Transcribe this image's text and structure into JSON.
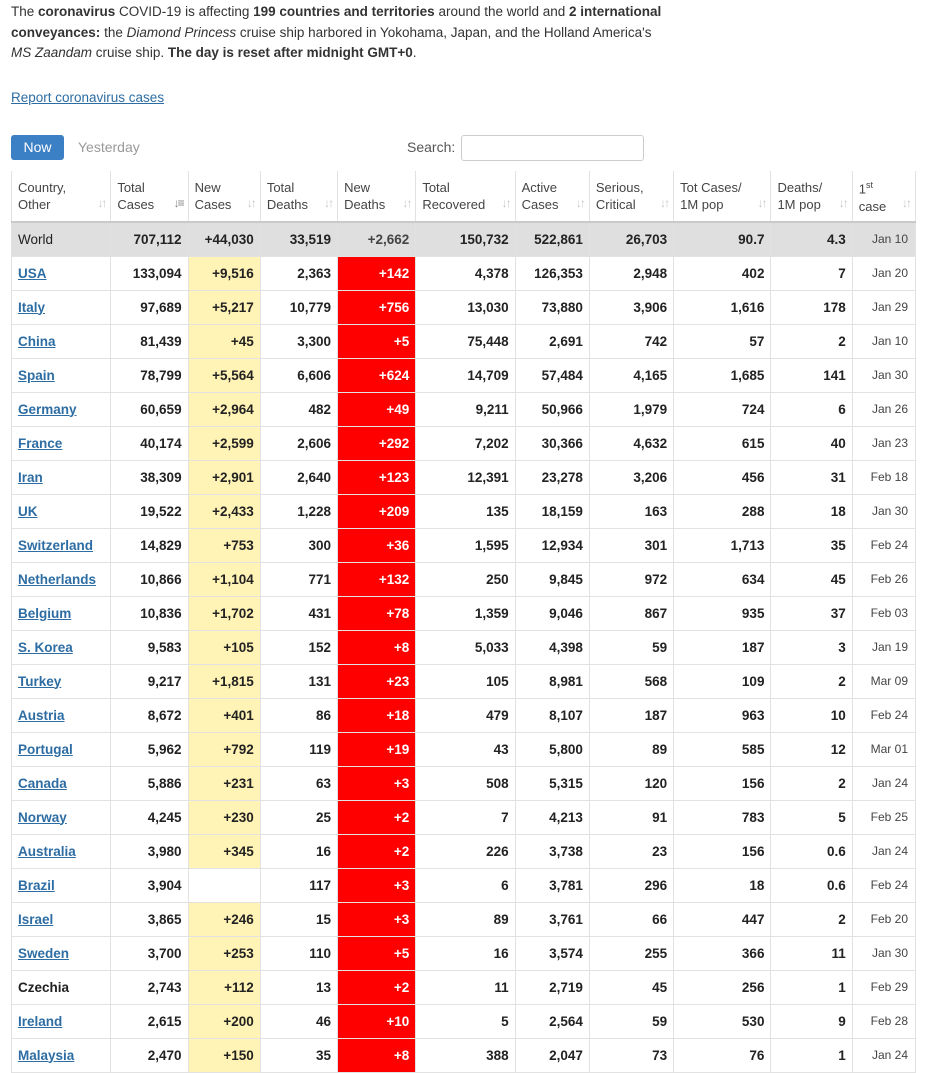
{
  "intro": {
    "t1": "The ",
    "b1": "coronavirus",
    "t2": " COVID-19 is affecting ",
    "b2": "199 countries and territories",
    "t3": " around the world and ",
    "b3": "2 international conveyances:",
    "t4": " the ",
    "i1": "Diamond Princess",
    "t5": " cruise ship harbored in Yokohama, Japan, and the Holland America's ",
    "i2": "MS Zaandam",
    "t6": " cruise ship. ",
    "b4": "The day is reset after midnight GMT+0",
    "t7": "."
  },
  "report_link": "Report coronavirus cases",
  "tabs": {
    "now": "Now",
    "yesterday": "Yesterday"
  },
  "search": {
    "label": "Search:",
    "value": "",
    "placeholder": ""
  },
  "headers": {
    "country": [
      "Country,",
      "Other"
    ],
    "total_cases": [
      "Total",
      "Cases"
    ],
    "new_cases": [
      "New",
      "Cases"
    ],
    "total_deaths": [
      "Total",
      "Deaths"
    ],
    "new_deaths": [
      "New",
      "Deaths"
    ],
    "total_recovered": [
      "Total",
      "Recovered"
    ],
    "active_cases": [
      "Active",
      "Cases"
    ],
    "serious": [
      "Serious,",
      "Critical"
    ],
    "tot_cases_pop": [
      "Tot Cases/",
      "1M pop"
    ],
    "deaths_pop": [
      "Deaths/",
      "1M pop"
    ],
    "first_case": [
      "1",
      "st",
      "case"
    ]
  },
  "icons": {
    "sort_icon": "↓↑",
    "sort_active_icon": "↓≡"
  },
  "colors": {
    "link": "#2d6da3",
    "new_cases_bg": "#fff3b5",
    "new_deaths_bg": "#ff0000",
    "world_bg": "#dfdfdf",
    "now_button": "#3b7fc4"
  },
  "rows": [
    {
      "country": "World",
      "link": false,
      "total": "707,112",
      "new": "+44,030",
      "deaths": "33,519",
      "new_deaths": "+2,662",
      "recovered": "150,732",
      "active": "522,861",
      "serious": "26,703",
      "per_m": "90.7",
      "deaths_m": "4.3",
      "first": "Jan 10"
    },
    {
      "country": "USA",
      "link": true,
      "total": "133,094",
      "new": "+9,516",
      "deaths": "2,363",
      "new_deaths": "+142",
      "recovered": "4,378",
      "active": "126,353",
      "serious": "2,948",
      "per_m": "402",
      "deaths_m": "7",
      "first": "Jan 20"
    },
    {
      "country": "Italy",
      "link": true,
      "total": "97,689",
      "new": "+5,217",
      "deaths": "10,779",
      "new_deaths": "+756",
      "recovered": "13,030",
      "active": "73,880",
      "serious": "3,906",
      "per_m": "1,616",
      "deaths_m": "178",
      "first": "Jan 29"
    },
    {
      "country": "China",
      "link": true,
      "total": "81,439",
      "new": "+45",
      "deaths": "3,300",
      "new_deaths": "+5",
      "recovered": "75,448",
      "active": "2,691",
      "serious": "742",
      "per_m": "57",
      "deaths_m": "2",
      "first": "Jan 10"
    },
    {
      "country": "Spain",
      "link": true,
      "total": "78,799",
      "new": "+5,564",
      "deaths": "6,606",
      "new_deaths": "+624",
      "recovered": "14,709",
      "active": "57,484",
      "serious": "4,165",
      "per_m": "1,685",
      "deaths_m": "141",
      "first": "Jan 30"
    },
    {
      "country": "Germany",
      "link": true,
      "total": "60,659",
      "new": "+2,964",
      "deaths": "482",
      "new_deaths": "+49",
      "recovered": "9,211",
      "active": "50,966",
      "serious": "1,979",
      "per_m": "724",
      "deaths_m": "6",
      "first": "Jan 26"
    },
    {
      "country": "France",
      "link": true,
      "total": "40,174",
      "new": "+2,599",
      "deaths": "2,606",
      "new_deaths": "+292",
      "recovered": "7,202",
      "active": "30,366",
      "serious": "4,632",
      "per_m": "615",
      "deaths_m": "40",
      "first": "Jan 23"
    },
    {
      "country": "Iran",
      "link": true,
      "total": "38,309",
      "new": "+2,901",
      "deaths": "2,640",
      "new_deaths": "+123",
      "recovered": "12,391",
      "active": "23,278",
      "serious": "3,206",
      "per_m": "456",
      "deaths_m": "31",
      "first": "Feb 18"
    },
    {
      "country": "UK",
      "link": true,
      "total": "19,522",
      "new": "+2,433",
      "deaths": "1,228",
      "new_deaths": "+209",
      "recovered": "135",
      "active": "18,159",
      "serious": "163",
      "per_m": "288",
      "deaths_m": "18",
      "first": "Jan 30"
    },
    {
      "country": "Switzerland",
      "link": true,
      "total": "14,829",
      "new": "+753",
      "deaths": "300",
      "new_deaths": "+36",
      "recovered": "1,595",
      "active": "12,934",
      "serious": "301",
      "per_m": "1,713",
      "deaths_m": "35",
      "first": "Feb 24"
    },
    {
      "country": "Netherlands",
      "link": true,
      "total": "10,866",
      "new": "+1,104",
      "deaths": "771",
      "new_deaths": "+132",
      "recovered": "250",
      "active": "9,845",
      "serious": "972",
      "per_m": "634",
      "deaths_m": "45",
      "first": "Feb 26"
    },
    {
      "country": "Belgium",
      "link": true,
      "total": "10,836",
      "new": "+1,702",
      "deaths": "431",
      "new_deaths": "+78",
      "recovered": "1,359",
      "active": "9,046",
      "serious": "867",
      "per_m": "935",
      "deaths_m": "37",
      "first": "Feb 03"
    },
    {
      "country": "S. Korea",
      "link": true,
      "total": "9,583",
      "new": "+105",
      "deaths": "152",
      "new_deaths": "+8",
      "recovered": "5,033",
      "active": "4,398",
      "serious": "59",
      "per_m": "187",
      "deaths_m": "3",
      "first": "Jan 19"
    },
    {
      "country": "Turkey",
      "link": true,
      "total": "9,217",
      "new": "+1,815",
      "deaths": "131",
      "new_deaths": "+23",
      "recovered": "105",
      "active": "8,981",
      "serious": "568",
      "per_m": "109",
      "deaths_m": "2",
      "first": "Mar 09"
    },
    {
      "country": "Austria",
      "link": true,
      "total": "8,672",
      "new": "+401",
      "deaths": "86",
      "new_deaths": "+18",
      "recovered": "479",
      "active": "8,107",
      "serious": "187",
      "per_m": "963",
      "deaths_m": "10",
      "first": "Feb 24"
    },
    {
      "country": "Portugal",
      "link": true,
      "total": "5,962",
      "new": "+792",
      "deaths": "119",
      "new_deaths": "+19",
      "recovered": "43",
      "active": "5,800",
      "serious": "89",
      "per_m": "585",
      "deaths_m": "12",
      "first": "Mar 01"
    },
    {
      "country": "Canada",
      "link": true,
      "total": "5,886",
      "new": "+231",
      "deaths": "63",
      "new_deaths": "+3",
      "recovered": "508",
      "active": "5,315",
      "serious": "120",
      "per_m": "156",
      "deaths_m": "2",
      "first": "Jan 24"
    },
    {
      "country": "Norway",
      "link": true,
      "total": "4,245",
      "new": "+230",
      "deaths": "25",
      "new_deaths": "+2",
      "recovered": "7",
      "active": "4,213",
      "serious": "91",
      "per_m": "783",
      "deaths_m": "5",
      "first": "Feb 25"
    },
    {
      "country": "Australia",
      "link": true,
      "total": "3,980",
      "new": "+345",
      "deaths": "16",
      "new_deaths": "+2",
      "recovered": "226",
      "active": "3,738",
      "serious": "23",
      "per_m": "156",
      "deaths_m": "0.6",
      "first": "Jan 24"
    },
    {
      "country": "Brazil",
      "link": true,
      "total": "3,904",
      "new": "",
      "deaths": "117",
      "new_deaths": "+3",
      "recovered": "6",
      "active": "3,781",
      "serious": "296",
      "per_m": "18",
      "deaths_m": "0.6",
      "first": "Feb 24"
    },
    {
      "country": "Israel",
      "link": true,
      "total": "3,865",
      "new": "+246",
      "deaths": "15",
      "new_deaths": "+3",
      "recovered": "89",
      "active": "3,761",
      "serious": "66",
      "per_m": "447",
      "deaths_m": "2",
      "first": "Feb 20"
    },
    {
      "country": "Sweden",
      "link": true,
      "total": "3,700",
      "new": "+253",
      "deaths": "110",
      "new_deaths": "+5",
      "recovered": "16",
      "active": "3,574",
      "serious": "255",
      "per_m": "366",
      "deaths_m": "11",
      "first": "Jan 30"
    },
    {
      "country": "Czechia",
      "link": false,
      "total": "2,743",
      "new": "+112",
      "deaths": "13",
      "new_deaths": "+2",
      "recovered": "11",
      "active": "2,719",
      "serious": "45",
      "per_m": "256",
      "deaths_m": "1",
      "first": "Feb 29"
    },
    {
      "country": "Ireland",
      "link": true,
      "total": "2,615",
      "new": "+200",
      "deaths": "46",
      "new_deaths": "+10",
      "recovered": "5",
      "active": "2,564",
      "serious": "59",
      "per_m": "530",
      "deaths_m": "9",
      "first": "Feb 28"
    },
    {
      "country": "Malaysia",
      "link": true,
      "total": "2,470",
      "new": "+150",
      "deaths": "35",
      "new_deaths": "+8",
      "recovered": "388",
      "active": "2,047",
      "serious": "73",
      "per_m": "76",
      "deaths_m": "1",
      "first": "Jan 24"
    }
  ]
}
